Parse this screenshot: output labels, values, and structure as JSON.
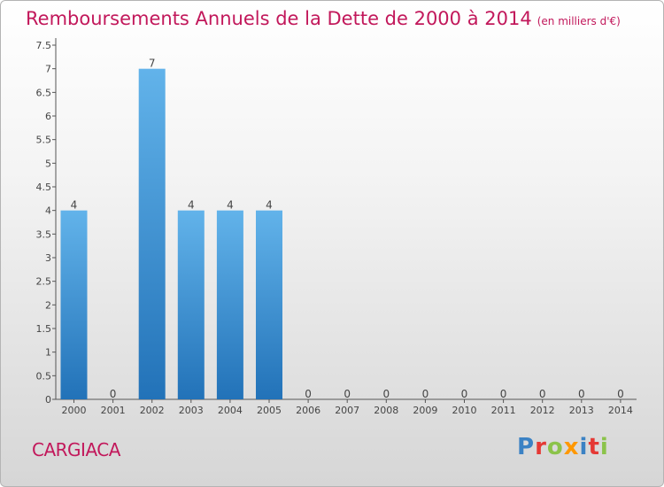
{
  "header": {
    "title": "Remboursements Annuels de la Dette de 2000 à 2014",
    "subtitle": "(en milliers d'€)"
  },
  "footer": {
    "commune": "CARGIACA",
    "logo_text": "Proxiti"
  },
  "colors": {
    "accent": "#c2185b",
    "bar_top": "#62b3ea",
    "bar_bottom": "#2272b8",
    "logo": [
      "#3b82c4",
      "#e53935",
      "#8bc34a",
      "#ff9800",
      "#3b82c4",
      "#e53935",
      "#8bc34a"
    ]
  },
  "chart_data": {
    "type": "bar",
    "title": "Remboursements Annuels de la Dette de 2000 à 2014",
    "xlabel": "",
    "ylabel": "",
    "categories": [
      "2000",
      "2001",
      "2002",
      "2003",
      "2004",
      "2005",
      "2006",
      "2007",
      "2008",
      "2009",
      "2010",
      "2011",
      "2012",
      "2013",
      "2014"
    ],
    "values": [
      4,
      0,
      7,
      4,
      4,
      4,
      0,
      0,
      0,
      0,
      0,
      0,
      0,
      0,
      0
    ],
    "data_labels": [
      "4",
      "0",
      "7",
      "4",
      "4",
      "4",
      "0",
      "0",
      "0",
      "0",
      "0",
      "0",
      "0",
      "0",
      "0"
    ],
    "ylim": [
      0,
      7.5
    ],
    "yticks": [
      0,
      0.5,
      1,
      1.5,
      2,
      2.5,
      3,
      3.5,
      4,
      4.5,
      5,
      5.5,
      6,
      6.5,
      7,
      7.5
    ],
    "ytick_labels": [
      "0",
      "0.5",
      "1",
      "1.5",
      "2",
      "2.5",
      "3",
      "3.5",
      "4",
      "4.5",
      "5",
      "5.5",
      "6",
      "6.5",
      "7",
      "7.5"
    ],
    "grid": false
  }
}
